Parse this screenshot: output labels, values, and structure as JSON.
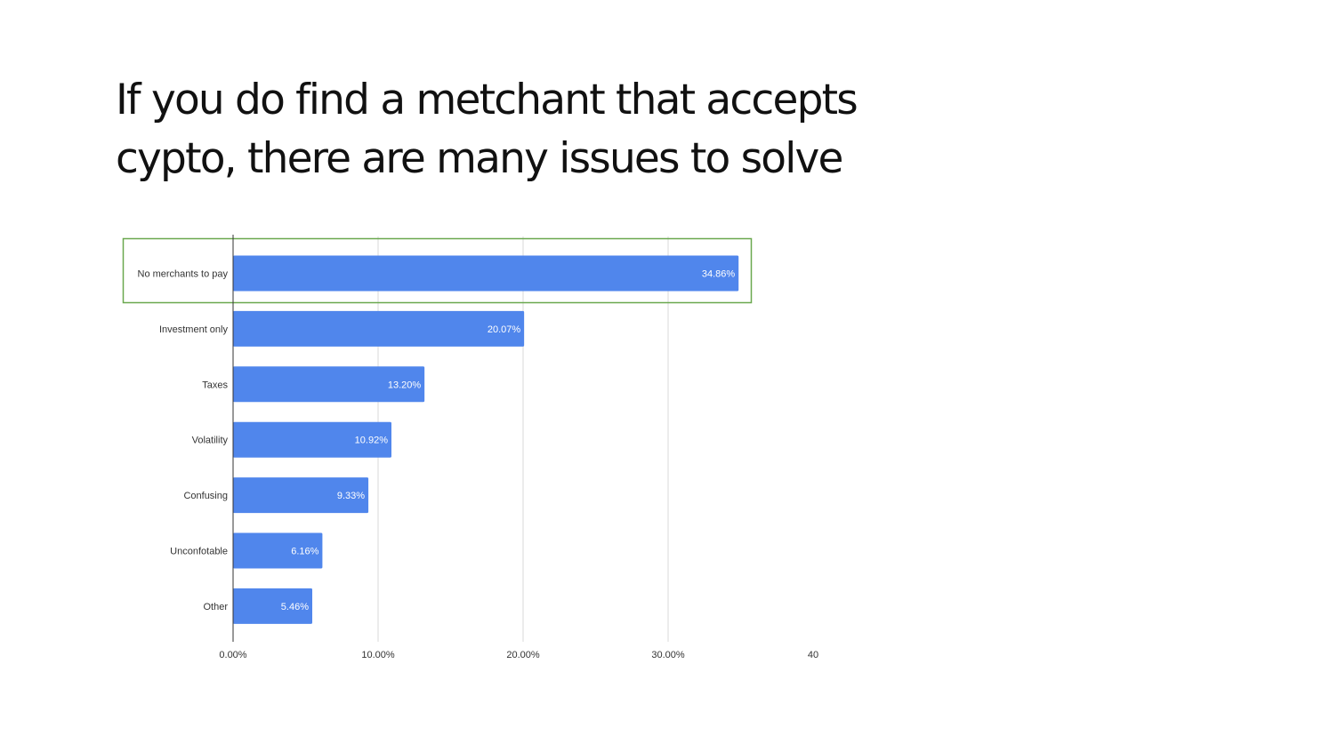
{
  "title": {
    "line1": "If you do find a metchant that accepts",
    "line2": "cypto, there are many issues to solve"
  },
  "chart_data": {
    "type": "bar",
    "orientation": "horizontal",
    "categories": [
      "No merchants to pay",
      "Investment only",
      "Taxes",
      "Volatility",
      "Confusing",
      "Unconfotable",
      "Other"
    ],
    "values": [
      34.86,
      20.07,
      13.2,
      10.92,
      9.33,
      6.16,
      5.46
    ],
    "value_labels": [
      "34.86%",
      "20.07%",
      "13.20%",
      "10.92%",
      "9.33%",
      "6.16%",
      "5.46%"
    ],
    "x_ticks": [
      {
        "value": 0,
        "label": "0.00%"
      },
      {
        "value": 10,
        "label": "10.00%"
      },
      {
        "value": 20,
        "label": "20.00%"
      },
      {
        "value": 30,
        "label": "30.00%"
      },
      {
        "value": 40,
        "label": "40"
      }
    ],
    "xlim": [
      0,
      40
    ],
    "grid": true,
    "highlighted_category": "No merchants to pay",
    "colors": {
      "bar": "#5086EC",
      "highlight_box": "#6AA84F",
      "grid": "#D9D9D9",
      "axis": "#333333"
    }
  }
}
